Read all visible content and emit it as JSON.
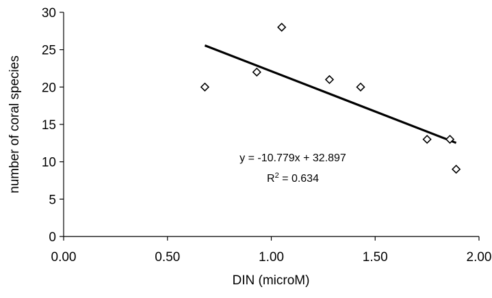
{
  "chart_data": {
    "type": "scatter",
    "xlabel": "DIN (microM)",
    "ylabel": "number of coral species",
    "xlim": [
      0.0,
      2.0
    ],
    "ylim": [
      0,
      30
    ],
    "x_ticks": [
      "0.00",
      "0.50",
      "1.00",
      "1.50",
      "2.00"
    ],
    "y_ticks": [
      "0",
      "5",
      "10",
      "15",
      "20",
      "25",
      "30"
    ],
    "points": [
      {
        "x": 0.68,
        "y": 20
      },
      {
        "x": 0.93,
        "y": 22
      },
      {
        "x": 1.05,
        "y": 28
      },
      {
        "x": 1.28,
        "y": 21
      },
      {
        "x": 1.43,
        "y": 20
      },
      {
        "x": 1.75,
        "y": 13
      },
      {
        "x": 1.86,
        "y": 13
      },
      {
        "x": 1.89,
        "y": 9
      }
    ],
    "trendline": {
      "slope": -10.779,
      "intercept": 32.897,
      "x_from": 0.68,
      "x_to": 1.89,
      "equation": "y = -10.779x + 32.897",
      "r2_label": "R",
      "r2_sup": "2",
      "r2_value": " = 0.634"
    },
    "marker": "diamond",
    "grid": false,
    "legend": "none",
    "colors": {
      "axis": "#000000",
      "marker": "#000000",
      "trend": "#000000"
    }
  }
}
